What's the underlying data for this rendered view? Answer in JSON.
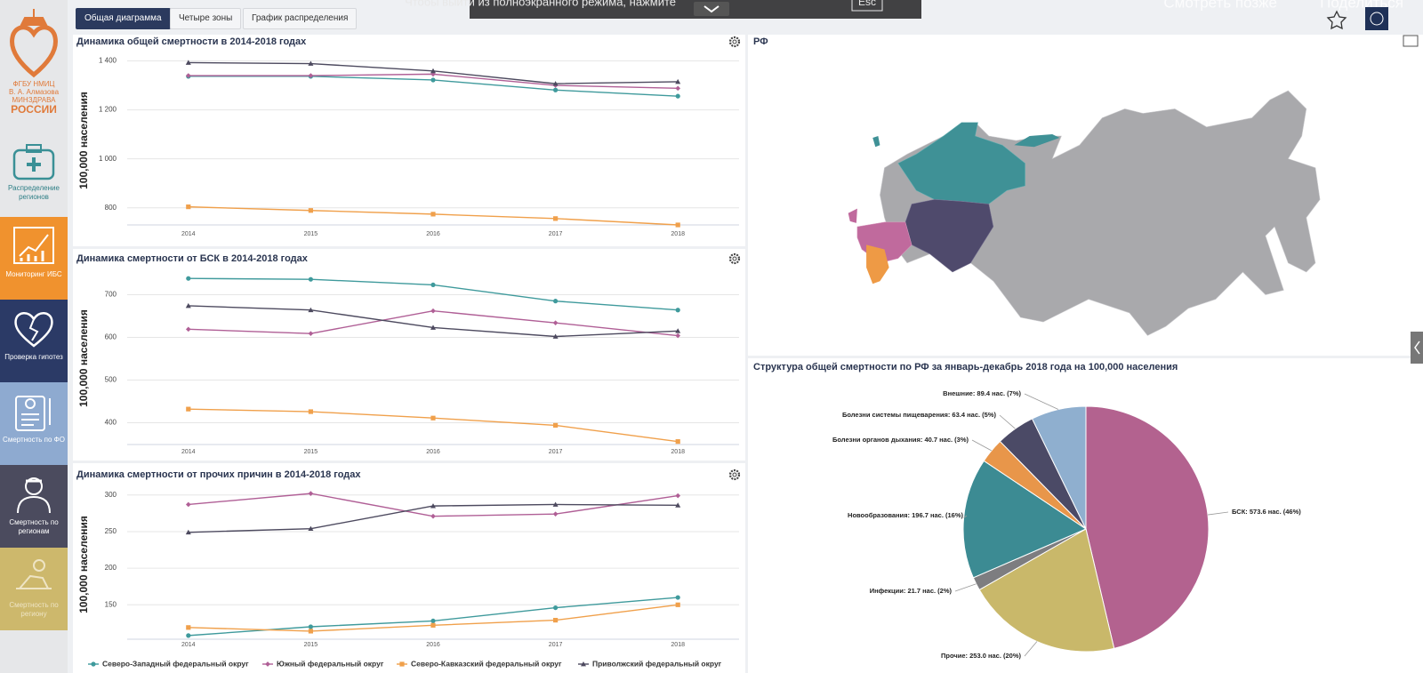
{
  "overlay": {
    "message": "Чтобы выйти из полноэкранного режима, нажмите",
    "key": "Esc",
    "watch_later": "Смотреть позже",
    "share": "Поделиться"
  },
  "sidebar": {
    "logo": [
      "ФГБУ НМИЦ",
      "В. А. Алмазова",
      "МИНЗДРАВА",
      "РОССИИ"
    ],
    "items": [
      "Распределение регионов",
      "Мониторинг ИБС",
      "Проверка гипотез",
      "Смертность по ФО",
      "Смертность по регионам",
      "Смертность по региону"
    ]
  },
  "tabs": [
    "Общая диаграмма",
    "Четыре зоны",
    "График распределения"
  ],
  "map": {
    "title": "РФ"
  },
  "chart_data": [
    {
      "type": "line",
      "title": "Динамика общей смертности в 2014-2018 годах",
      "y_label": "100,000 населения",
      "categories": [
        "2014",
        "2015",
        "2016",
        "2017",
        "2018"
      ],
      "series": [
        {
          "color": "#3f9a9c",
          "values": [
            1337,
            1337,
            1322,
            1281,
            1256
          ]
        },
        {
          "color": "#b05f96",
          "values": [
            1340,
            1340,
            1346,
            1300,
            1288
          ]
        },
        {
          "color": "#f0a04b",
          "values": [
            804,
            789,
            774,
            756,
            730
          ]
        },
        {
          "color": "#4d4a5f",
          "values": [
            1393,
            1389,
            1359,
            1307,
            1315
          ]
        }
      ],
      "ylim": [
        730,
        1420
      ],
      "yticks": [
        800,
        {
          "value": 1000,
          "label": "1 000"
        },
        {
          "value": 1200,
          "label": "1 200"
        },
        {
          "value": 1400,
          "label": "1 400"
        }
      ],
      "grid": true
    },
    {
      "type": "line",
      "title": "Динамика смертности от БСК в 2014-2018 годах",
      "y_label": "100,000 населения",
      "categories": [
        "2014",
        "2015",
        "2016",
        "2017",
        "2018"
      ],
      "series": [
        {
          "color": "#3f9a9c",
          "values": [
            738,
            736,
            723,
            685,
            664
          ]
        },
        {
          "color": "#b05f96",
          "values": [
            619,
            609,
            662,
            634,
            604
          ]
        },
        {
          "color": "#f0a04b",
          "values": [
            432,
            426,
            411,
            394,
            356
          ]
        },
        {
          "color": "#4d4a5f",
          "values": [
            674,
            664,
            623,
            602,
            615
          ]
        }
      ],
      "ylim": [
        349,
        753
      ],
      "yticks": [
        400,
        500,
        600,
        700
      ],
      "grid": true
    },
    {
      "type": "line",
      "title": "Динамика смертности от прочих причин в 2014-2018 годах",
      "y_label": "100,000 населения",
      "categories": [
        "2014",
        "2015",
        "2016",
        "2017",
        "2018"
      ],
      "series": [
        {
          "name": "Северо-Западный федеральный округ",
          "color": "#3f9a9c",
          "values": [
            108,
            120,
            128,
            146,
            160
          ]
        },
        {
          "name": "Южный федеральный округ",
          "color": "#b05f96",
          "values": [
            287,
            302,
            271,
            274,
            299
          ]
        },
        {
          "name": "Северо-Кавказский федеральный округ",
          "color": "#f0a04b",
          "values": [
            119,
            114,
            122,
            129,
            150
          ]
        },
        {
          "name": "Приволжский федеральный округ",
          "color": "#4d4a5f",
          "values": [
            249,
            254,
            285,
            287,
            286
          ]
        }
      ],
      "ylim": [
        103,
        307
      ],
      "yticks": [
        150,
        200,
        250,
        300
      ],
      "grid": true,
      "legend": "bottom"
    },
    {
      "type": "pie",
      "title": "Структура общей смертности по РФ за январь-декабрь 2018 года на 100,000 населения",
      "values": [
        573.6,
        253.0,
        21.7,
        196.7,
        40.7,
        63.4,
        89.4
      ],
      "value_labels": [
        "БСК: 573.6 нас. (46%)",
        "Прочие: 253.0 нас. (20%)",
        "Инфекции: 21.7 нас. (2%)",
        "Новообразования: 196.7 нас. (16%)",
        "Болезни органов дыхания: 40.7 нас. (3%)",
        "Болезни системы пищеварения: 63.4 нас. (5%)",
        "Внешние: 89.4 нас. (7%)"
      ],
      "colors": [
        "#b3628f",
        "#c9b86a",
        "#7d7d80",
        "#3c8b93",
        "#e8964a",
        "#4b4a66",
        "#8fafcf"
      ]
    }
  ]
}
